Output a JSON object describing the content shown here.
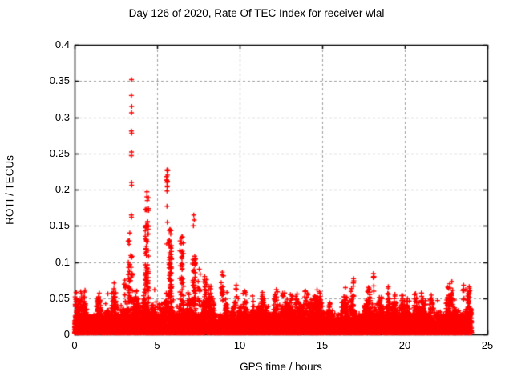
{
  "chart_data": {
    "type": "scatter",
    "title": "Day 126 of 2020, Rate Of TEC Index for receiver wlal",
    "xlabel": "GPS time / hours",
    "ylabel": "ROTI / TECUs",
    "xlim": [
      0,
      25
    ],
    "ylim": [
      0,
      0.4
    ],
    "xticks": [
      {
        "v": 0,
        "label": "0"
      },
      {
        "v": 5,
        "label": "5"
      },
      {
        "v": 10,
        "label": "10"
      },
      {
        "v": 15,
        "label": "15"
      },
      {
        "v": 20,
        "label": "20"
      },
      {
        "v": 25,
        "label": "25"
      }
    ],
    "yticks": [
      {
        "v": 0,
        "label": "0"
      },
      {
        "v": 0.05,
        "label": "0.05"
      },
      {
        "v": 0.1,
        "label": "0.1"
      },
      {
        "v": 0.15,
        "label": "0.15"
      },
      {
        "v": 0.2,
        "label": "0.2"
      },
      {
        "v": 0.25,
        "label": "0.25"
      },
      {
        "v": 0.3,
        "label": "0.3"
      },
      {
        "v": 0.35,
        "label": "0.35"
      },
      {
        "v": 0.4,
        "label": "0.4"
      }
    ],
    "grid": {
      "shown": true,
      "style": "dashed",
      "color": "#9c9c9c"
    },
    "legend": "none",
    "series": [
      {
        "name": "ROTI",
        "color": "#ff0000",
        "marker": "plus",
        "marker_size": 7
      }
    ],
    "data_x_range": [
      0,
      24.05
    ],
    "baseline_band": {
      "description": "dense noise band across all hours",
      "y_range": [
        0,
        0.05
      ],
      "typical_top": 0.04,
      "column_step_hours": 0.012,
      "points_per_column": [
        4,
        8
      ],
      "seed": 1234
    },
    "peak_points": [
      [
        3.45,
        0.352
      ],
      [
        3.44,
        0.33
      ],
      [
        3.46,
        0.315
      ],
      [
        3.45,
        0.306
      ],
      [
        3.44,
        0.281
      ],
      [
        3.46,
        0.278
      ],
      [
        3.45,
        0.252
      ],
      [
        3.44,
        0.247
      ],
      [
        3.45,
        0.21
      ],
      [
        3.46,
        0.206
      ],
      [
        3.44,
        0.165
      ],
      [
        3.45,
        0.162
      ],
      [
        4.38,
        0.19
      ],
      [
        4.4,
        0.185
      ],
      [
        5.6,
        0.227
      ],
      [
        5.63,
        0.22
      ],
      [
        5.58,
        0.213
      ],
      [
        5.62,
        0.205
      ],
      [
        5.6,
        0.198
      ],
      [
        5.6,
        0.177
      ],
      [
        5.62,
        0.155
      ],
      [
        5.58,
        0.125
      ],
      [
        7.22,
        0.165
      ],
      [
        7.25,
        0.158
      ],
      [
        7.2,
        0.15
      ],
      [
        8.95,
        0.086
      ],
      [
        18.1,
        0.084
      ],
      [
        16.9,
        0.077
      ],
      [
        22.85,
        0.073
      ],
      [
        19.0,
        0.066
      ],
      [
        23.9,
        0.066
      ]
    ],
    "spike_clusters": [
      {
        "x": 3.38,
        "spread": 0.28,
        "count": 50,
        "ymin": 0.045,
        "ymax": 0.14,
        "decay": 2.0
      },
      {
        "x": 3.05,
        "spread": 0.12,
        "count": 10,
        "ymin": 0.04,
        "ymax": 0.075,
        "decay": 1.3
      },
      {
        "x": 4.38,
        "spread": 0.22,
        "count": 70,
        "ymin": 0.06,
        "ymax": 0.197,
        "decay": 1.5
      },
      {
        "x": 5.62,
        "spread": 0.12,
        "count": 8,
        "ymin": 0.198,
        "ymax": 0.227,
        "decay": 1.0
      },
      {
        "x": 5.8,
        "spread": 0.18,
        "count": 55,
        "ymin": 0.05,
        "ymax": 0.145,
        "decay": 1.4
      },
      {
        "x": 6.5,
        "spread": 0.25,
        "count": 45,
        "ymin": 0.04,
        "ymax": 0.135,
        "decay": 1.7
      },
      {
        "x": 7.25,
        "spread": 0.2,
        "count": 40,
        "ymin": 0.04,
        "ymax": 0.108,
        "decay": 1.5
      },
      {
        "x": 7.55,
        "spread": 0.15,
        "count": 12,
        "ymin": 0.04,
        "ymax": 0.09,
        "decay": 1.3
      },
      {
        "x": 7.9,
        "spread": 0.2,
        "count": 15,
        "ymin": 0.04,
        "ymax": 0.08,
        "decay": 1.4
      },
      {
        "x": 8.95,
        "spread": 0.15,
        "count": 14,
        "ymin": 0.045,
        "ymax": 0.082,
        "decay": 1.3
      },
      {
        "x": 9.8,
        "spread": 0.12,
        "count": 8,
        "ymin": 0.04,
        "ymax": 0.068,
        "decay": 1.2
      },
      {
        "x": 10.3,
        "spread": 0.2,
        "count": 10,
        "ymin": 0.035,
        "ymax": 0.06,
        "decay": 1.2
      },
      {
        "x": 11.4,
        "spread": 0.2,
        "count": 8,
        "ymin": 0.035,
        "ymax": 0.058,
        "decay": 1.2
      },
      {
        "x": 12.2,
        "spread": 0.25,
        "count": 12,
        "ymin": 0.035,
        "ymax": 0.062,
        "decay": 1.2
      },
      {
        "x": 13.1,
        "spread": 0.2,
        "count": 8,
        "ymin": 0.035,
        "ymax": 0.055,
        "decay": 1.2
      },
      {
        "x": 14.0,
        "spread": 0.25,
        "count": 10,
        "ymin": 0.035,
        "ymax": 0.06,
        "decay": 1.2
      },
      {
        "x": 16.9,
        "spread": 0.1,
        "count": 5,
        "ymin": 0.05,
        "ymax": 0.074,
        "decay": 1.0
      },
      {
        "x": 18.1,
        "spread": 0.1,
        "count": 6,
        "ymin": 0.05,
        "ymax": 0.08,
        "decay": 1.0
      },
      {
        "x": 19.0,
        "spread": 0.08,
        "count": 4,
        "ymin": 0.05,
        "ymax": 0.064,
        "decay": 1.0
      },
      {
        "x": 21.0,
        "spread": 0.12,
        "count": 5,
        "ymin": 0.04,
        "ymax": 0.057,
        "decay": 1.0
      },
      {
        "x": 22.75,
        "spread": 0.35,
        "count": 30,
        "ymin": 0.04,
        "ymax": 0.07,
        "decay": 1.3
      },
      {
        "x": 23.55,
        "spread": 0.1,
        "count": 6,
        "ymin": 0.045,
        "ymax": 0.068,
        "decay": 1.1
      },
      {
        "x": 23.9,
        "spread": 0.1,
        "count": 8,
        "ymin": 0.045,
        "ymax": 0.064,
        "decay": 1.1
      },
      {
        "x": 0.08,
        "spread": 0.1,
        "count": 12,
        "ymin": 0.03,
        "ymax": 0.058,
        "decay": 1.2
      },
      {
        "x": 1.5,
        "spread": 0.2,
        "count": 10,
        "ymin": 0.03,
        "ymax": 0.057,
        "decay": 1.2
      },
      {
        "x": 2.35,
        "spread": 0.3,
        "count": 14,
        "ymin": 0.035,
        "ymax": 0.063,
        "decay": 1.3
      }
    ],
    "axis_color": "#000000",
    "background_color": "#ffffff"
  }
}
